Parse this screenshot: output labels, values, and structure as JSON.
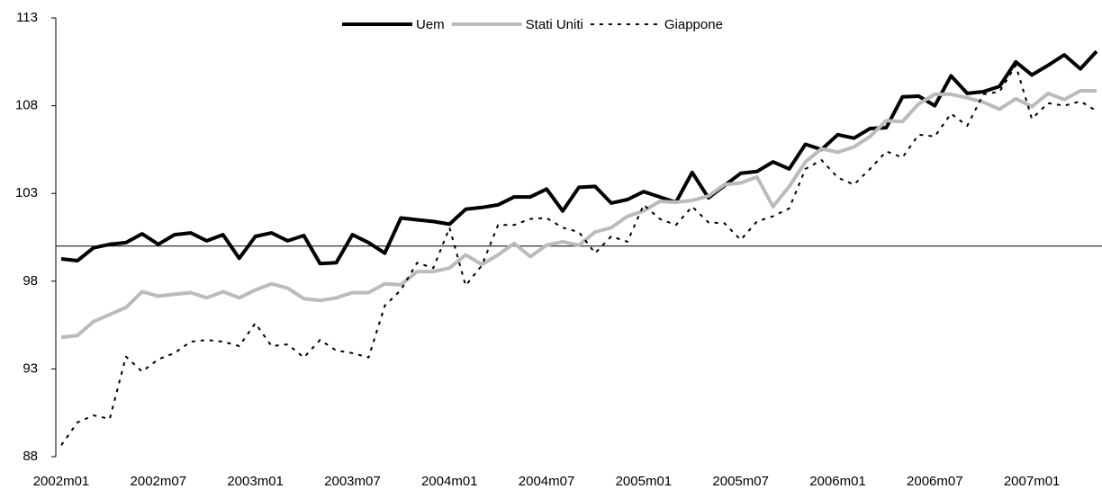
{
  "chart_data": {
    "type": "line",
    "categories": [
      "2002m01",
      null,
      null,
      null,
      null,
      null,
      "2002m07",
      null,
      null,
      null,
      null,
      null,
      "2003m01",
      null,
      null,
      null,
      null,
      null,
      "2003m07",
      null,
      null,
      null,
      null,
      null,
      "2004m01",
      null,
      null,
      null,
      null,
      null,
      "2004m07",
      null,
      null,
      null,
      null,
      null,
      "2005m01",
      null,
      null,
      null,
      null,
      null,
      "2005m07",
      null,
      null,
      null,
      null,
      null,
      "2006m01",
      null,
      null,
      null,
      null,
      null,
      "2006m07",
      null,
      null,
      null,
      null,
      null,
      "2007m01",
      null,
      null,
      null,
      null
    ],
    "series": [
      {
        "name": "Uem",
        "color": "#000000",
        "style": "solid",
        "values": [
          99.27,
          99.17,
          99.9,
          100.1,
          100.2,
          100.7,
          100.1,
          100.65,
          100.75,
          100.3,
          100.65,
          99.3,
          100.55,
          100.75,
          100.3,
          100.6,
          99.0,
          99.05,
          100.65,
          100.2,
          99.6,
          101.6,
          101.5,
          101.4,
          101.25,
          102.1,
          102.2,
          102.35,
          102.8,
          102.8,
          103.25,
          102.0,
          103.35,
          103.4,
          102.45,
          102.65,
          103.1,
          102.8,
          102.5,
          104.2,
          102.75,
          103.45,
          104.15,
          104.25,
          104.8,
          104.4,
          105.8,
          105.5,
          106.35,
          106.15,
          106.7,
          106.75,
          108.5,
          108.55,
          108.0,
          109.7,
          108.7,
          108.8,
          109.1,
          110.5,
          109.75,
          110.3,
          110.9,
          110.1,
          111.1
        ]
      },
      {
        "name": "Stati Uniti",
        "color": "#bbbbbb",
        "style": "solid",
        "values": [
          94.8,
          94.9,
          95.7,
          96.1,
          96.5,
          97.4,
          97.15,
          97.25,
          97.35,
          97.05,
          97.4,
          97.05,
          97.5,
          97.85,
          97.6,
          97.0,
          96.9,
          97.05,
          97.35,
          97.35,
          97.85,
          97.8,
          98.55,
          98.55,
          98.75,
          99.5,
          98.95,
          99.5,
          100.15,
          99.4,
          100.05,
          100.25,
          100.05,
          100.8,
          101.05,
          101.7,
          102.0,
          102.55,
          102.5,
          102.6,
          102.85,
          103.5,
          103.6,
          103.95,
          102.25,
          103.4,
          104.8,
          105.55,
          105.35,
          105.65,
          106.25,
          107.15,
          107.1,
          108.1,
          108.65,
          108.65,
          108.45,
          108.2,
          107.8,
          108.4,
          107.95,
          108.7,
          108.35,
          108.85,
          108.85
        ]
      },
      {
        "name": "Giappone",
        "color": "#000000",
        "style": "dotted",
        "values": [
          88.65,
          89.95,
          90.35,
          90.15,
          93.7,
          92.85,
          93.55,
          93.9,
          94.55,
          94.65,
          94.55,
          94.3,
          95.6,
          94.3,
          94.4,
          93.65,
          94.65,
          94.05,
          93.9,
          93.65,
          96.6,
          97.5,
          99.05,
          98.75,
          101.05,
          97.75,
          98.9,
          101.2,
          101.2,
          101.55,
          101.6,
          101.05,
          100.8,
          99.6,
          100.55,
          100.25,
          102.35,
          101.55,
          101.2,
          102.25,
          101.35,
          101.3,
          100.35,
          101.4,
          101.7,
          102.15,
          104.4,
          104.9,
          103.9,
          103.5,
          104.4,
          105.4,
          105.05,
          106.35,
          106.25,
          107.55,
          106.85,
          108.65,
          108.8,
          110.3,
          107.25,
          108.15,
          108.0,
          108.25,
          107.7
        ]
      }
    ],
    "ylim": [
      88,
      113
    ],
    "yticks": [
      88,
      93,
      98,
      103,
      108,
      113
    ],
    "reference_line": 100,
    "legend": "top"
  }
}
